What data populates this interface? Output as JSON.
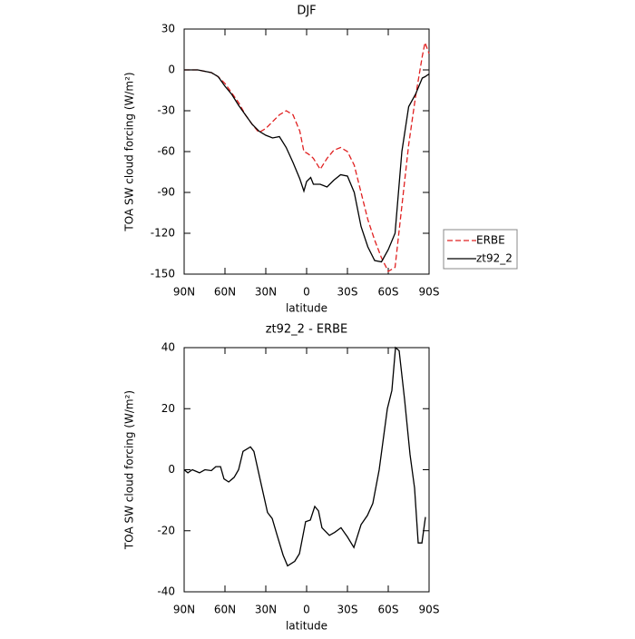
{
  "chart_data": [
    {
      "type": "line",
      "title": "DJF",
      "x_label": "latitude",
      "y_label": "TOA SW cloud forcing (W/m²)",
      "x": [
        90,
        85,
        80,
        75,
        70,
        65,
        60,
        55,
        50,
        45,
        40,
        35,
        30,
        25,
        20,
        15,
        10,
        5,
        2,
        0,
        -3,
        -5,
        -10,
        -15,
        -20,
        -25,
        -30,
        -35,
        -40,
        -45,
        -50,
        -55,
        -60,
        -65,
        -70,
        -75,
        -80,
        -85,
        -87,
        -90
      ],
      "series": [
        {
          "name": "ERBE",
          "color": "#e02020",
          "dash": true,
          "values": [
            0,
            0,
            0,
            -1,
            -2,
            -5,
            -10,
            -17,
            -24,
            -33,
            -40,
            -46,
            -43,
            -38,
            -33,
            -30,
            -33,
            -45,
            -60,
            -61,
            -63,
            -65,
            -73,
            -65,
            -59,
            -57,
            -60,
            -70,
            -90,
            -110,
            -125,
            -138,
            -148,
            -145,
            -100,
            -55,
            -20,
            10,
            20,
            12
          ]
        },
        {
          "name": "zt92_2",
          "color": "#000000",
          "dash": false,
          "values": [
            0,
            0,
            0,
            -1,
            -2,
            -5,
            -12,
            -18,
            -26,
            -33,
            -40,
            -45,
            -48,
            -50,
            -49,
            -57,
            -68,
            -80,
            -89,
            -82,
            -79,
            -84,
            -84,
            -86,
            -81,
            -77,
            -78,
            -90,
            -115,
            -130,
            -140,
            -141,
            -132,
            -120,
            -60,
            -27,
            -18,
            -6,
            -5,
            -3
          ]
        }
      ],
      "xlim": [
        90,
        -90
      ],
      "xticks": [
        {
          "value": 90,
          "label": "90N"
        },
        {
          "value": 60,
          "label": "60N"
        },
        {
          "value": 30,
          "label": "30N"
        },
        0,
        {
          "value": -30,
          "label": "30S"
        },
        {
          "value": -60,
          "label": "60S"
        },
        {
          "value": -90,
          "label": "90S"
        }
      ],
      "ylim": [
        -150,
        30
      ],
      "yticks": [
        30,
        0,
        -30,
        -60,
        -90,
        -120,
        -150
      ],
      "legend": "right"
    },
    {
      "type": "line",
      "title": "zt92_2 - ERBE",
      "x_label": "latitude",
      "y_label": "TOA SW cloud forcing (W/m²)",
      "x": [
        90,
        87.3,
        84,
        78.7,
        74.7,
        70,
        66.7,
        63.3,
        60.7,
        57.3,
        53.3,
        50,
        46.7,
        41.3,
        38.7,
        33.3,
        28.7,
        25.3,
        22,
        17.3,
        14,
        8.7,
        5.3,
        0.7,
        -2.7,
        -6,
        -8.7,
        -11.3,
        -16.7,
        -20.7,
        -25.3,
        -30,
        -34.7,
        -40,
        -44.7,
        -48.7,
        -53.3,
        -59.3,
        -62.7,
        -65.3,
        -68,
        -72,
        -76,
        -79.3,
        -82,
        -84.7,
        -87.3
      ],
      "values": [
        0,
        -1,
        0,
        -1,
        0,
        -0.3,
        1,
        1,
        -3,
        -4,
        -2.5,
        0,
        6,
        7.5,
        6,
        -5,
        -14,
        -16,
        -21,
        -28,
        -31.5,
        -30,
        -27.5,
        -17,
        -16.5,
        -12,
        -13.5,
        -19,
        -21.5,
        -20.5,
        -19,
        -22,
        -25.5,
        -18,
        -15,
        -11,
        0,
        20,
        26,
        40,
        39,
        23,
        5,
        -6,
        -24,
        -24,
        -15.5
      ],
      "color": "#000000",
      "xlim": [
        90,
        -90
      ],
      "xticks": [
        {
          "value": 90,
          "label": "90N"
        },
        {
          "value": 60,
          "label": "60N"
        },
        {
          "value": 30,
          "label": "30N"
        },
        0,
        {
          "value": -30,
          "label": "30S"
        },
        {
          "value": -60,
          "label": "60S"
        },
        {
          "value": -90,
          "label": "90S"
        }
      ],
      "ylim": [
        -40,
        40
      ],
      "yticks": [
        40,
        20,
        0,
        -20,
        -40
      ]
    }
  ]
}
